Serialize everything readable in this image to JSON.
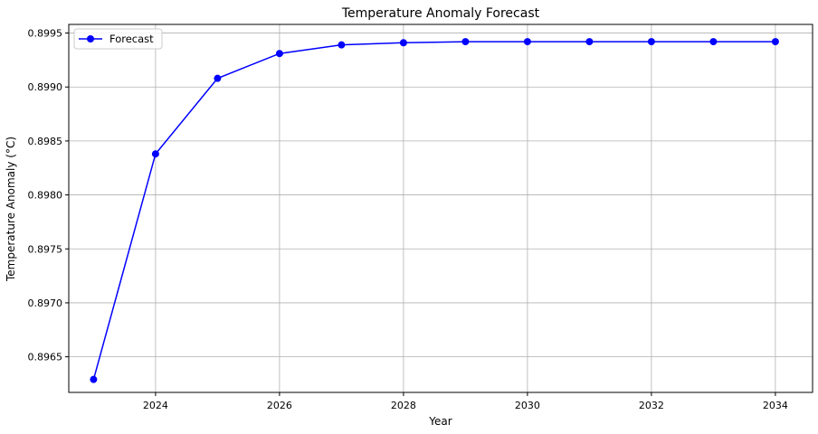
{
  "chart_data": {
    "type": "line",
    "title": "Temperature Anomaly Forecast",
    "xlabel": "Year",
    "ylabel": "Temperature Anomaly (°C)",
    "xlim": [
      2022.6,
      2034.6
    ],
    "ylim": [
      0.89617,
      0.89958
    ],
    "xticks": [
      2024,
      2026,
      2028,
      2030,
      2032,
      2034
    ],
    "xtick_labels": [
      "2024",
      "2026",
      "2028",
      "2030",
      "2032",
      "2034"
    ],
    "yticks": [
      0.8965,
      0.897,
      0.8975,
      0.898,
      0.8985,
      0.899,
      0.8995
    ],
    "ytick_labels": [
      "0.8965",
      "0.8970",
      "0.8975",
      "0.8980",
      "0.8985",
      "0.8990",
      "0.8995"
    ],
    "grid": true,
    "legend_position": "upper-left",
    "series": [
      {
        "name": "Forecast",
        "color": "#0000ff",
        "marker": "circle",
        "x": [
          2023,
          2024,
          2025,
          2026,
          2027,
          2028,
          2029,
          2030,
          2031,
          2032,
          2033,
          2034
        ],
        "y": [
          0.89629,
          0.89838,
          0.89908,
          0.89931,
          0.89939,
          0.89941,
          0.89942,
          0.89942,
          0.89942,
          0.89942,
          0.89942,
          0.89942
        ]
      }
    ]
  }
}
